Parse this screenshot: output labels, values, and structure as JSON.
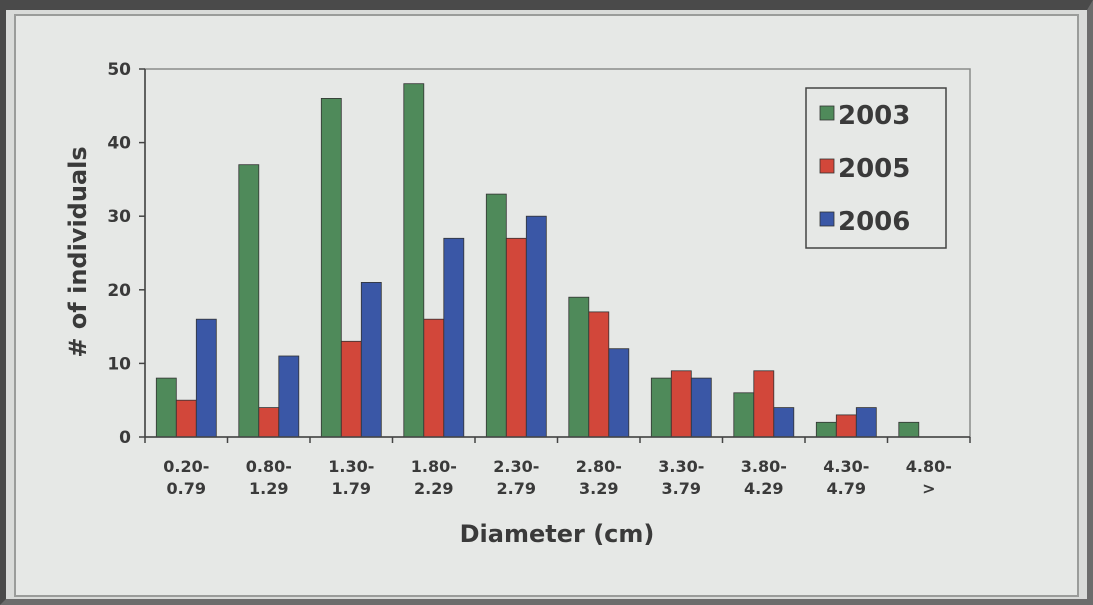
{
  "chart_data": {
    "type": "bar",
    "title": "",
    "xlabel": "Diameter (cm)",
    "ylabel": "# of individuals",
    "ylim": [
      0,
      50
    ],
    "yticks": [
      0,
      10,
      20,
      30,
      40,
      50
    ],
    "grid": false,
    "legend_position": "top-right",
    "categories": [
      [
        "0.20-",
        "0.79"
      ],
      [
        "0.80-",
        "1.29"
      ],
      [
        "1.30-",
        "1.79"
      ],
      [
        "1.80-",
        "2.29"
      ],
      [
        "2.30-",
        "2.79"
      ],
      [
        "2.80-",
        "3.29"
      ],
      [
        "3.30-",
        "3.79"
      ],
      [
        "3.80-",
        "4.29"
      ],
      [
        "4.30-",
        "4.79"
      ],
      [
        "4.80-",
        ">"
      ]
    ],
    "series": [
      {
        "name": "2003",
        "color": "#4f8a5a",
        "values": [
          8,
          37,
          46,
          48,
          33,
          19,
          8,
          6,
          2,
          2
        ]
      },
      {
        "name": "2005",
        "color": "#d2473a",
        "values": [
          5,
          4,
          13,
          16,
          27,
          17,
          9,
          9,
          3,
          0
        ]
      },
      {
        "name": "2006",
        "color": "#3a57a6",
        "values": [
          16,
          11,
          21,
          27,
          30,
          12,
          8,
          4,
          4,
          0
        ]
      }
    ]
  }
}
